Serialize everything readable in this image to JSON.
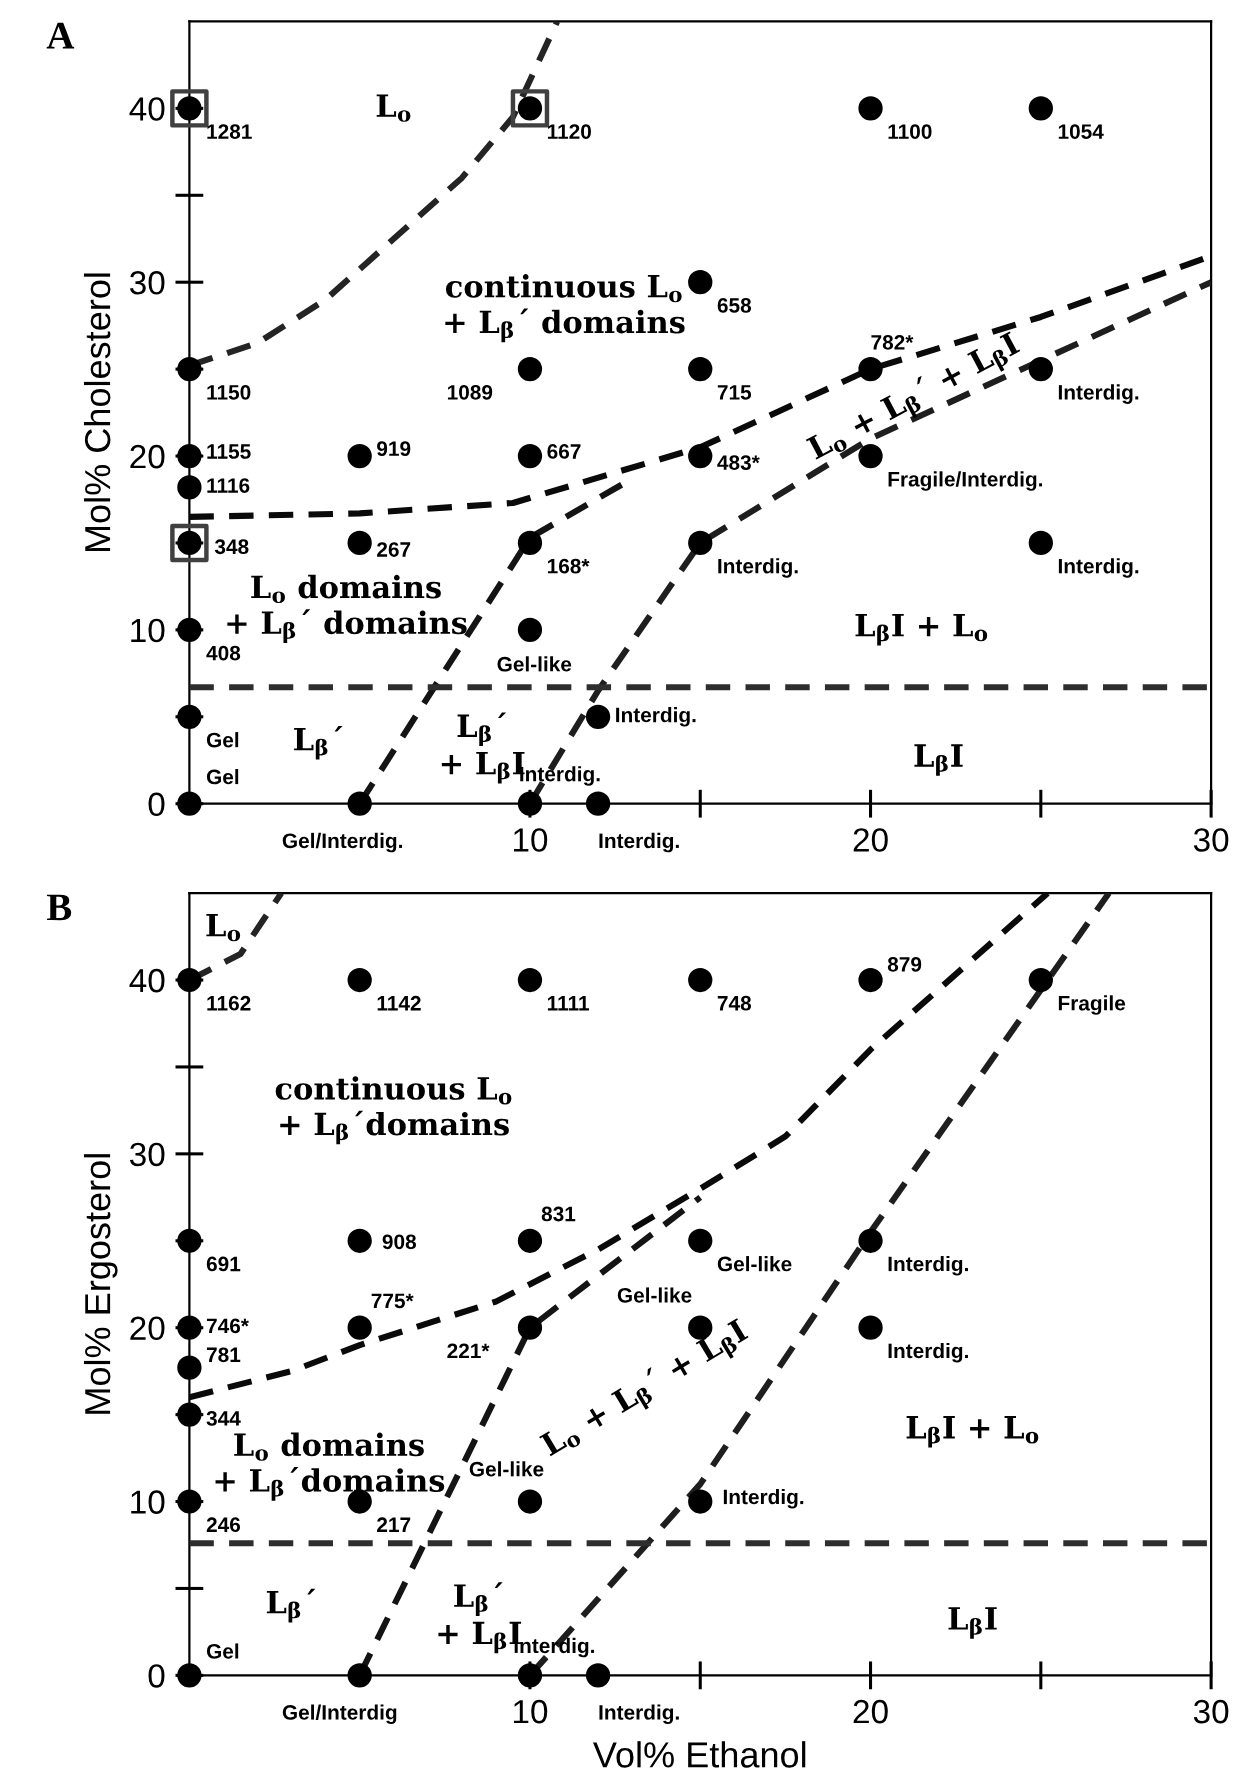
{
  "chart_data": [
    {
      "type": "scatter",
      "title": "A",
      "ylabel": "Mol% Cholesterol",
      "xlim": [
        0,
        30
      ],
      "ylim": [
        0,
        45
      ],
      "xticks": [
        10,
        20,
        30
      ],
      "yticks": [
        0,
        10,
        20,
        30,
        40
      ],
      "grid": false,
      "legend": false,
      "series": [
        {
          "type": "line",
          "color": "#242424",
          "line_style": "dashed",
          "marker": "none",
          "x": [
            0,
            2,
            4,
            6,
            8,
            9.5,
            10.8
          ],
          "values": [
            25.2,
            26.5,
            29,
            32.5,
            36,
            39.5,
            45
          ]
        },
        {
          "type": "line",
          "color": "#0a0a0a",
          "line_style": "dashed",
          "marker": "none",
          "x": [
            0,
            5,
            9.5,
            15,
            20,
            25,
            30
          ],
          "values": [
            16.5,
            16.7,
            17.3,
            20.5,
            25,
            28,
            31.5
          ]
        },
        {
          "type": "line",
          "color": "#141414",
          "line_style": "dashed",
          "marker": "none",
          "x": [
            5,
            10,
            13
          ],
          "values": [
            0,
            15.3,
            18.7
          ]
        },
        {
          "type": "line",
          "color": "#1e1e1e",
          "line_style": "dashed",
          "marker": "none",
          "x": [
            10,
            12,
            15,
            20,
            25,
            30
          ],
          "values": [
            0,
            6.5,
            15,
            21,
            25.5,
            30
          ]
        },
        {
          "color": "#000000",
          "marker": "circle",
          "x": [
            0,
            10,
            20,
            25,
            15,
            0,
            10,
            15,
            20,
            25,
            0,
            0,
            5,
            10,
            15,
            20,
            0,
            5,
            10,
            15,
            25,
            0,
            10,
            0,
            0,
            5,
            10,
            12,
            12
          ],
          "values": [
            40,
            40,
            40,
            40,
            30,
            25,
            25,
            25,
            25,
            25,
            20,
            18.2,
            20,
            20,
            20,
            20,
            15,
            15,
            15,
            15,
            15,
            10,
            10,
            5,
            0,
            0,
            0,
            5,
            0
          ]
        },
        {
          "type": "scatter",
          "color": "#404040",
          "marker": "square",
          "x": [
            0,
            10,
            0
          ],
          "values": [
            40,
            40,
            15
          ]
        }
      ],
      "ref_lines": [
        {
          "axis": "y",
          "value": 6.7,
          "color": "#2e2e2e",
          "line_style": "dashed"
        }
      ],
      "annotations": [
        {
          "text": "1281",
          "x": 0,
          "y": 40
        },
        {
          "text": "1120",
          "x": 10,
          "y": 40
        },
        {
          "text": "1100",
          "x": 20,
          "y": 40
        },
        {
          "text": "1054",
          "x": 25,
          "y": 40
        },
        {
          "text": "658",
          "x": 15,
          "y": 30
        },
        {
          "text": "1150",
          "x": 0,
          "y": 25
        },
        {
          "text": "1089",
          "x": 10,
          "y": 25
        },
        {
          "text": "715",
          "x": 15,
          "y": 25
        },
        {
          "text": "782*",
          "x": 20,
          "y": 25
        },
        {
          "text": "Interdig.",
          "x": 25,
          "y": 25
        },
        {
          "text": "1155",
          "x": 0,
          "y": 20
        },
        {
          "text": "1116",
          "x": 0,
          "y": 18.2
        },
        {
          "text": "919",
          "x": 5,
          "y": 20
        },
        {
          "text": "667",
          "x": 10,
          "y": 20
        },
        {
          "text": "483*",
          "x": 15,
          "y": 20
        },
        {
          "text": "Fragile/Interdig.",
          "x": 20,
          "y": 20
        },
        {
          "text": "348",
          "x": 0,
          "y": 15
        },
        {
          "text": "267",
          "x": 5,
          "y": 15
        },
        {
          "text": "168*",
          "x": 10,
          "y": 15
        },
        {
          "text": "Interdig.",
          "x": 15,
          "y": 15
        },
        {
          "text": "Interdig.",
          "x": 25,
          "y": 15
        },
        {
          "text": "408",
          "x": 0,
          "y": 10
        },
        {
          "text": "Gel-like",
          "x": 10,
          "y": 10
        },
        {
          "text": "Gel",
          "x": 0,
          "y": 5
        },
        {
          "text": "Gel",
          "x": 0,
          "y": 0
        },
        {
          "text": "Gel/Interdig.",
          "x": 5,
          "y": 0
        },
        {
          "text": "Interdig.",
          "x": 10,
          "y": 0
        },
        {
          "text": "Interdig.",
          "x": 12,
          "y": 5
        },
        {
          "text": "Interdig.",
          "x": 12,
          "y": 0
        },
        "L$_{o}$",
        "continuous L$_{o}$\n+ L$_{β}$´ domains",
        "L$_{o}$ domains\n+ L$_{β}$´ domains",
        "L$_{β}$´",
        "L$_{β}$´\n+ L$_{β}$I",
        "L$_{o}$ + L$_{β}$´ + L$_{β}$I",
        "L$_{β}$I + L$_{o}$",
        "L$_{β}$I"
      ]
    },
    {
      "type": "scatter",
      "title": "B",
      "xlabel": "Vol% Ethanol",
      "ylabel": "Mol% Ergosterol",
      "xlim": [
        0,
        30
      ],
      "ylim": [
        0,
        45
      ],
      "xticks": [
        10,
        20,
        30
      ],
      "yticks": [
        0,
        10,
        20,
        30,
        40
      ],
      "grid": false,
      "legend": false,
      "series": [
        {
          "type": "line",
          "color": "#242424",
          "line_style": "dashed",
          "marker": "none",
          "x": [
            0,
            1.5,
            2.7
          ],
          "values": [
            40,
            41.5,
            45
          ]
        },
        {
          "type": "line",
          "color": "#0a0a0a",
          "line_style": "dashed",
          "marker": "none",
          "x": [
            0,
            3,
            5,
            9,
            12,
            15,
            17.5,
            20,
            25.2
          ],
          "values": [
            16,
            17.5,
            19,
            21.5,
            24.5,
            28,
            31,
            36,
            45
          ]
        },
        {
          "type": "line",
          "color": "#141414",
          "line_style": "dashed",
          "marker": "none",
          "x": [
            5,
            10,
            15
          ],
          "values": [
            0,
            20,
            27.5
          ]
        },
        {
          "type": "line",
          "color": "#1e1e1e",
          "line_style": "dashed",
          "marker": "none",
          "x": [
            10,
            15,
            20,
            27
          ],
          "values": [
            0,
            11,
            25.5,
            45
          ]
        },
        {
          "color": "#000000",
          "marker": "circle",
          "x": [
            0,
            5,
            10,
            15,
            20,
            25,
            0,
            5,
            10,
            15,
            20,
            0,
            5,
            10,
            15,
            20,
            0,
            0,
            0,
            5,
            10,
            15,
            0,
            5,
            10,
            12
          ],
          "values": [
            40,
            40,
            40,
            40,
            40,
            40,
            25,
            25,
            25,
            25,
            25,
            20,
            20,
            20,
            20,
            20,
            17.7,
            15,
            10,
            10,
            10,
            10,
            0,
            0,
            0,
            0
          ]
        }
      ],
      "ref_lines": [
        {
          "axis": "y",
          "value": 7.6,
          "color": "#2e2e2e",
          "line_style": "dashed"
        }
      ],
      "annotations": [
        {
          "text": "1162",
          "x": 0,
          "y": 40
        },
        {
          "text": "1142",
          "x": 5,
          "y": 40
        },
        {
          "text": "1111",
          "x": 10,
          "y": 40
        },
        {
          "text": "748",
          "x": 15,
          "y": 40
        },
        {
          "text": "879",
          "x": 20,
          "y": 40
        },
        {
          "text": "Fragile",
          "x": 25,
          "y": 40
        },
        {
          "text": "691",
          "x": 0,
          "y": 25
        },
        {
          "text": "908",
          "x": 5,
          "y": 25
        },
        {
          "text": "831",
          "x": 10,
          "y": 25
        },
        {
          "text": "Gel-like",
          "x": 15,
          "y": 25
        },
        {
          "text": "Interdig.",
          "x": 20,
          "y": 25
        },
        {
          "text": "746*",
          "x": 0,
          "y": 20
        },
        {
          "text": "775*",
          "x": 5,
          "y": 20
        },
        {
          "text": "221*",
          "x": 10,
          "y": 20
        },
        {
          "text": "Gel-like",
          "x": 15,
          "y": 20
        },
        {
          "text": "Interdig.",
          "x": 20,
          "y": 20
        },
        {
          "text": "781",
          "x": 0,
          "y": 17.7
        },
        {
          "text": "344",
          "x": 0,
          "y": 15
        },
        {
          "text": "246",
          "x": 0,
          "y": 10
        },
        {
          "text": "217",
          "x": 5,
          "y": 10
        },
        {
          "text": "Gel-like",
          "x": 10,
          "y": 10
        },
        {
          "text": "Interdig.",
          "x": 15,
          "y": 10
        },
        {
          "text": "Gel",
          "x": 0,
          "y": 0
        },
        {
          "text": "Gel/Interdig",
          "x": 5,
          "y": 0
        },
        {
          "text": "Interdig.",
          "x": 10,
          "y": 0
        },
        {
          "text": "Interdig.",
          "x": 12,
          "y": 0
        },
        "L$_{o}$",
        "continuous L$_{o}$\n+ L$_{β}$´domains",
        "L$_{o}$ domains\n+ L$_{β}$´domains",
        "L$_{β}$´",
        "L$_{β}$´\n+ L$_{β}$I",
        "L$_{o}$ + L$_{β}$´ + L$_{β}$I",
        "L$_{β}$I + L$_{o}$",
        "L$_{β}$I"
      ]
    }
  ]
}
